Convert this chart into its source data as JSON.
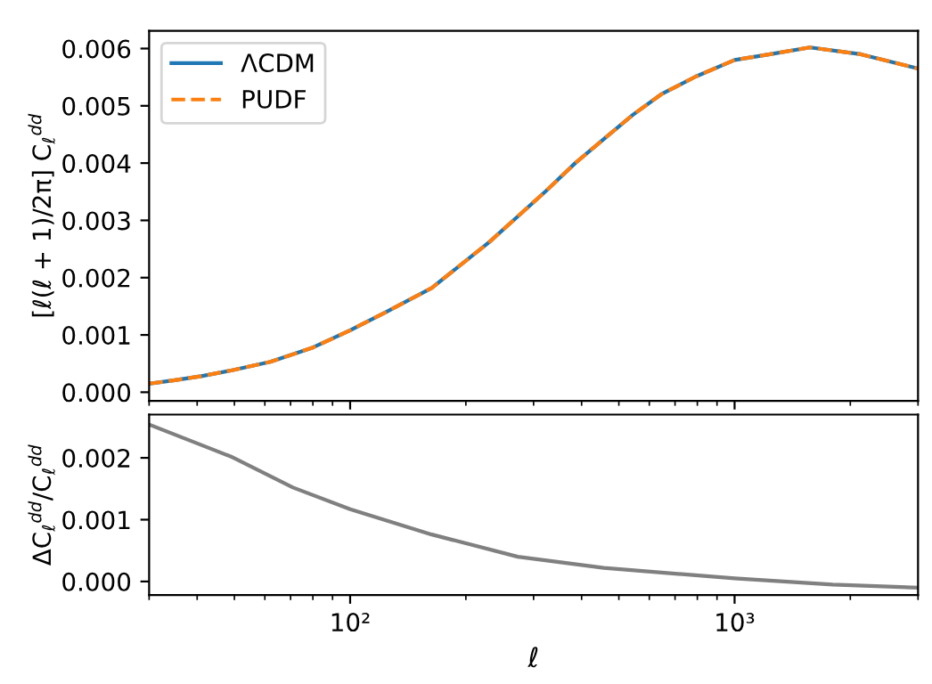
{
  "chart_data": [
    {
      "type": "line",
      "ylabel": "[ℓ(ℓ + 1)/2π] C$_{ℓ}$$^{dd}$",
      "log": "x",
      "xlim": [
        30,
        3000
      ],
      "ylim": [
        -0.00015,
        0.00631
      ],
      "yticks": [
        {
          "value": 0,
          "label": "0.000"
        },
        {
          "value": 0.001,
          "label": "0.001"
        },
        {
          "value": 0.002,
          "label": "0.002"
        },
        {
          "value": 0.003,
          "label": "0.003"
        },
        {
          "value": 0.004,
          "label": "0.004"
        },
        {
          "value": 0.005,
          "label": "0.005"
        },
        {
          "value": 0.006,
          "label": "0.006"
        }
      ],
      "tick_labels": "y",
      "legend": "top left",
      "grid": false,
      "x": [
        30,
        35,
        41,
        49,
        62,
        80,
        100,
        124,
        163,
        230,
        273,
        324,
        385,
        457,
        543,
        644,
        792,
        1000,
        1237,
        1570,
        2130,
        3000
      ],
      "series": [
        {
          "name": "ΛCDM",
          "color": "#1f77b4",
          "line_style": "solid",
          "values": [
            0.00015,
            0.00021,
            0.00028,
            0.00038,
            0.00053,
            0.00078,
            0.00108,
            0.0014,
            0.00182,
            0.00262,
            0.00307,
            0.00352,
            0.004,
            0.00442,
            0.00484,
            0.0052,
            0.00551,
            0.0058,
            0.0059,
            0.00602,
            0.0059,
            0.00565
          ]
        },
        {
          "name": "PUDF",
          "color": "#ff7f0e",
          "line_style": "dashed",
          "values": [
            0.00015,
            0.00021,
            0.00028,
            0.00038,
            0.00053,
            0.00078,
            0.00108,
            0.0014,
            0.00182,
            0.00262,
            0.00307,
            0.00352,
            0.004,
            0.00442,
            0.00484,
            0.0052,
            0.00551,
            0.0058,
            0.0059,
            0.00602,
            0.0059,
            0.00565
          ]
        }
      ]
    },
    {
      "type": "line",
      "xlabel": "ℓ",
      "ylabel": "ΔC$_{ℓ}$$^{dd}$/C$_{ℓ}$$^{dd}$",
      "log": "x",
      "xlim": [
        30,
        3000
      ],
      "xticks": [
        {
          "value": 100,
          "label": "10²"
        },
        {
          "value": 1000,
          "label": "10³"
        }
      ],
      "ylim": [
        -0.00022,
        0.0027
      ],
      "yticks": [
        {
          "value": 0,
          "label": "0.000"
        },
        {
          "value": 0.001,
          "label": "0.001"
        },
        {
          "value": 0.002,
          "label": "0.002"
        }
      ],
      "grid": false,
      "x": [
        30,
        49,
        71,
        100,
        163,
        273,
        457,
        1000,
        1800,
        3000
      ],
      "series": [
        {
          "color": "#808080",
          "line_style": "solid",
          "values": [
            0.00254,
            0.00202,
            0.00152,
            0.00117,
            0.00076,
            0.0004,
            0.00022,
            5e-05,
            -5e-05,
            -0.0001
          ]
        }
      ]
    }
  ]
}
